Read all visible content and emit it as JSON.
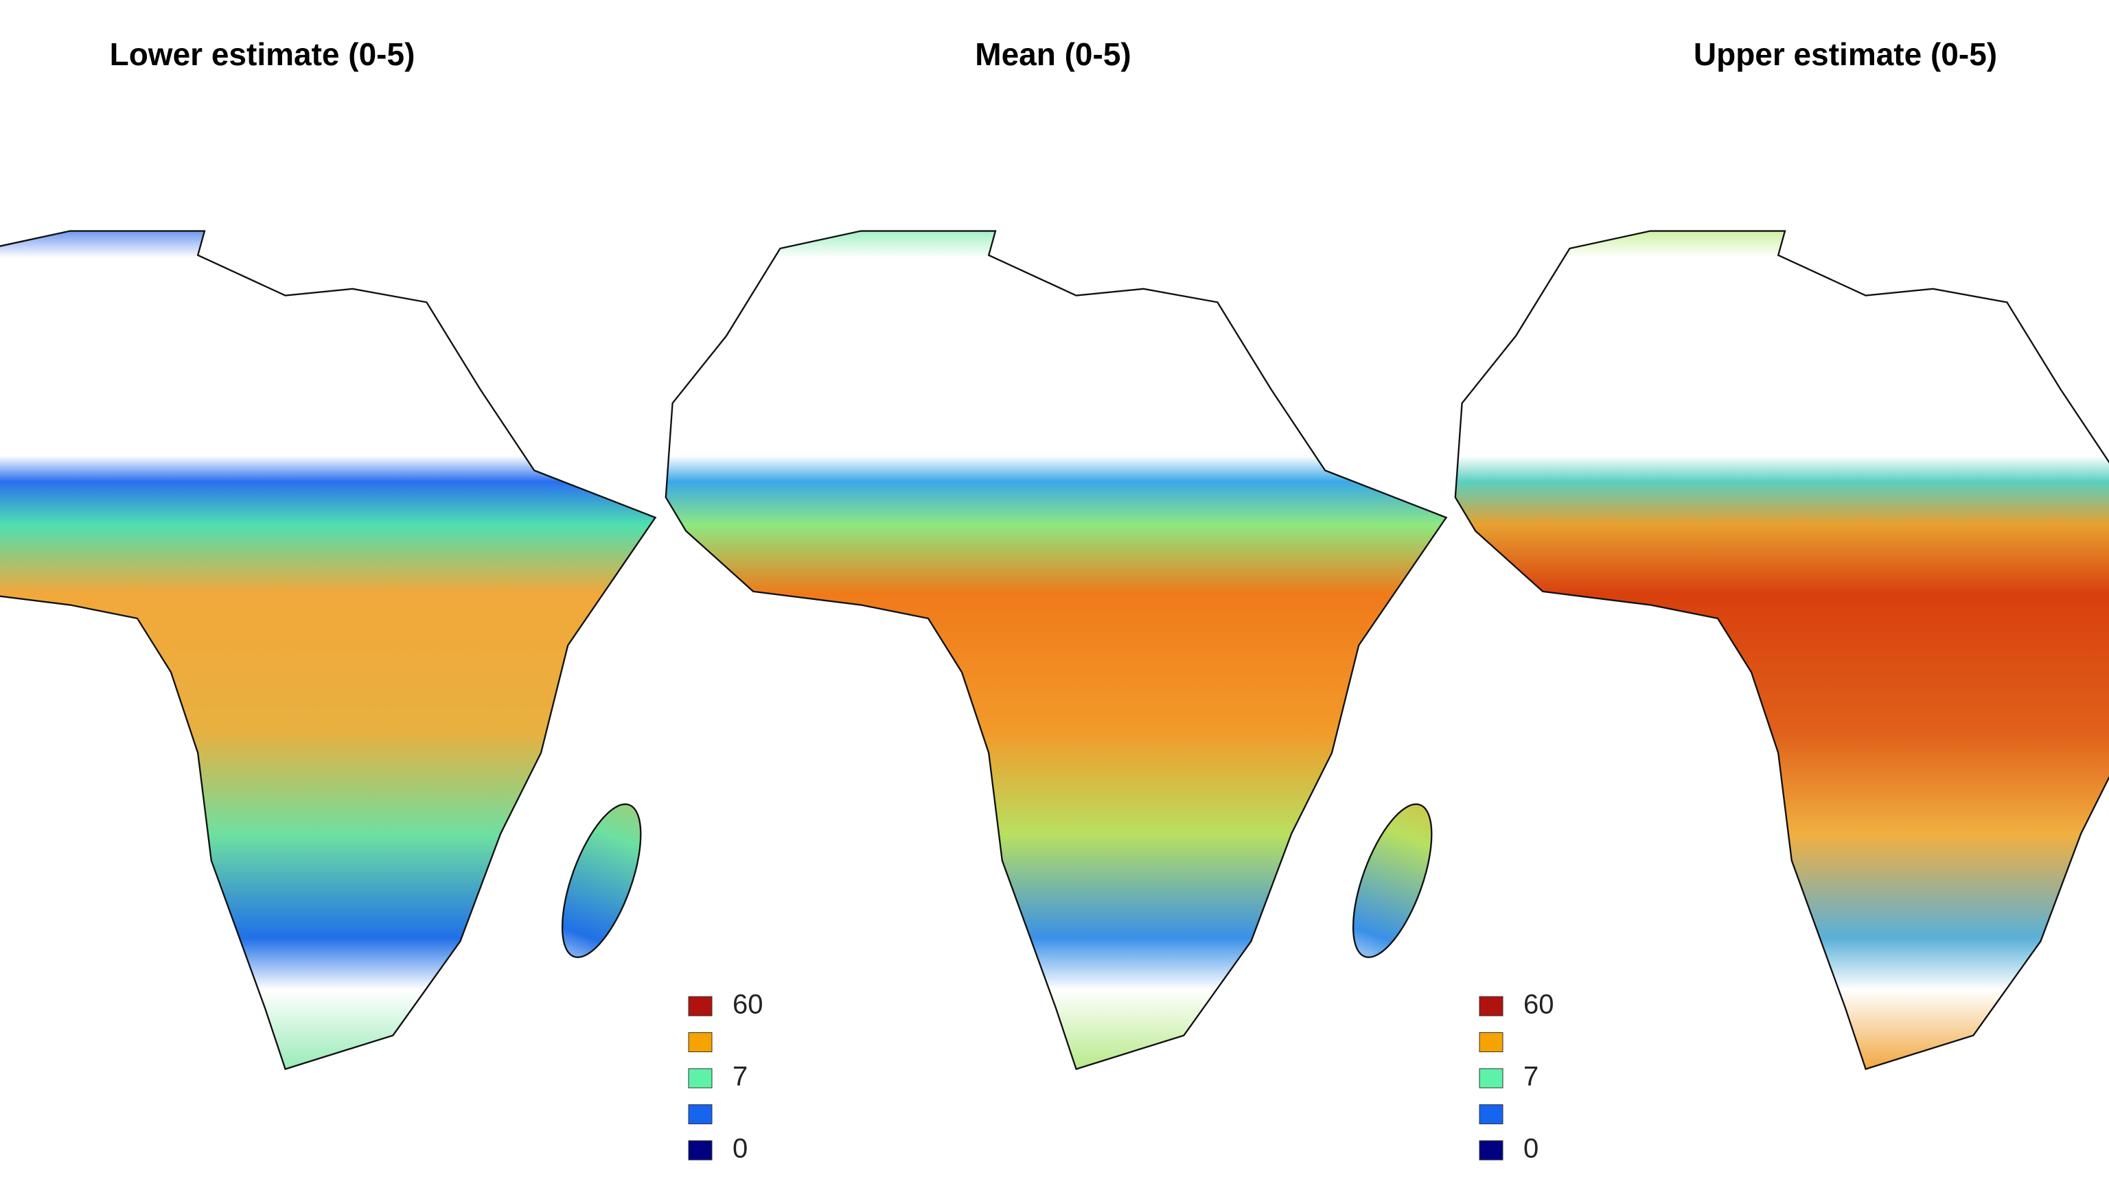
{
  "panels": [
    {
      "title": "Lower estimate (0-5)"
    },
    {
      "title": "Mean (0-5)"
    },
    {
      "title": "Upper estimate (0-5)"
    }
  ],
  "legends": [
    {
      "items": [
        {
          "color": "#b0120e",
          "label": "60"
        },
        {
          "color": "#f5a300"
        },
        {
          "color": "#5df2a8",
          "label": "7"
        },
        {
          "color": "#1565f0"
        },
        {
          "color": "#000080",
          "label": "0"
        }
      ]
    },
    {
      "items": [
        {
          "color": "#b0120e",
          "label": "60"
        },
        {
          "color": "#f5a300"
        },
        {
          "color": "#5df2a8",
          "label": "7"
        },
        {
          "color": "#1565f0"
        },
        {
          "color": "#000080",
          "label": "0"
        }
      ]
    }
  ]
}
